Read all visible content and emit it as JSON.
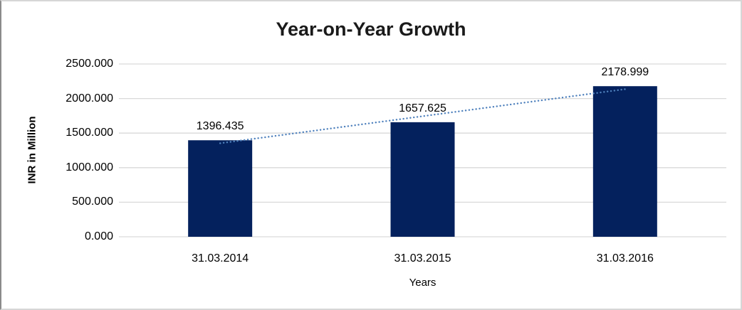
{
  "chart_data": {
    "type": "bar",
    "title": "Year-on-Year Growth",
    "categories": [
      "31.03.2014",
      "31.03.2015",
      "31.03.2016"
    ],
    "values": [
      1396.435,
      1657.625,
      2178.999
    ],
    "data_labels": [
      "1396.435",
      "1657.625",
      "2178.999"
    ],
    "xlabel": "Years",
    "ylabel": "INR in Million",
    "ylim": [
      0,
      2500
    ],
    "ytick_labels": [
      "0.000",
      "500.000",
      "1000.000",
      "1500.000",
      "2000.000",
      "2500.000"
    ],
    "grid": true,
    "legend": "none",
    "trendline": {
      "type": "linear",
      "style": "dotted"
    },
    "colors": {
      "bar": "#04215d",
      "trendline": "#4f81bd",
      "gridline": "#d9d9d9",
      "text": "#000000",
      "title": "#1a1a1a"
    }
  }
}
